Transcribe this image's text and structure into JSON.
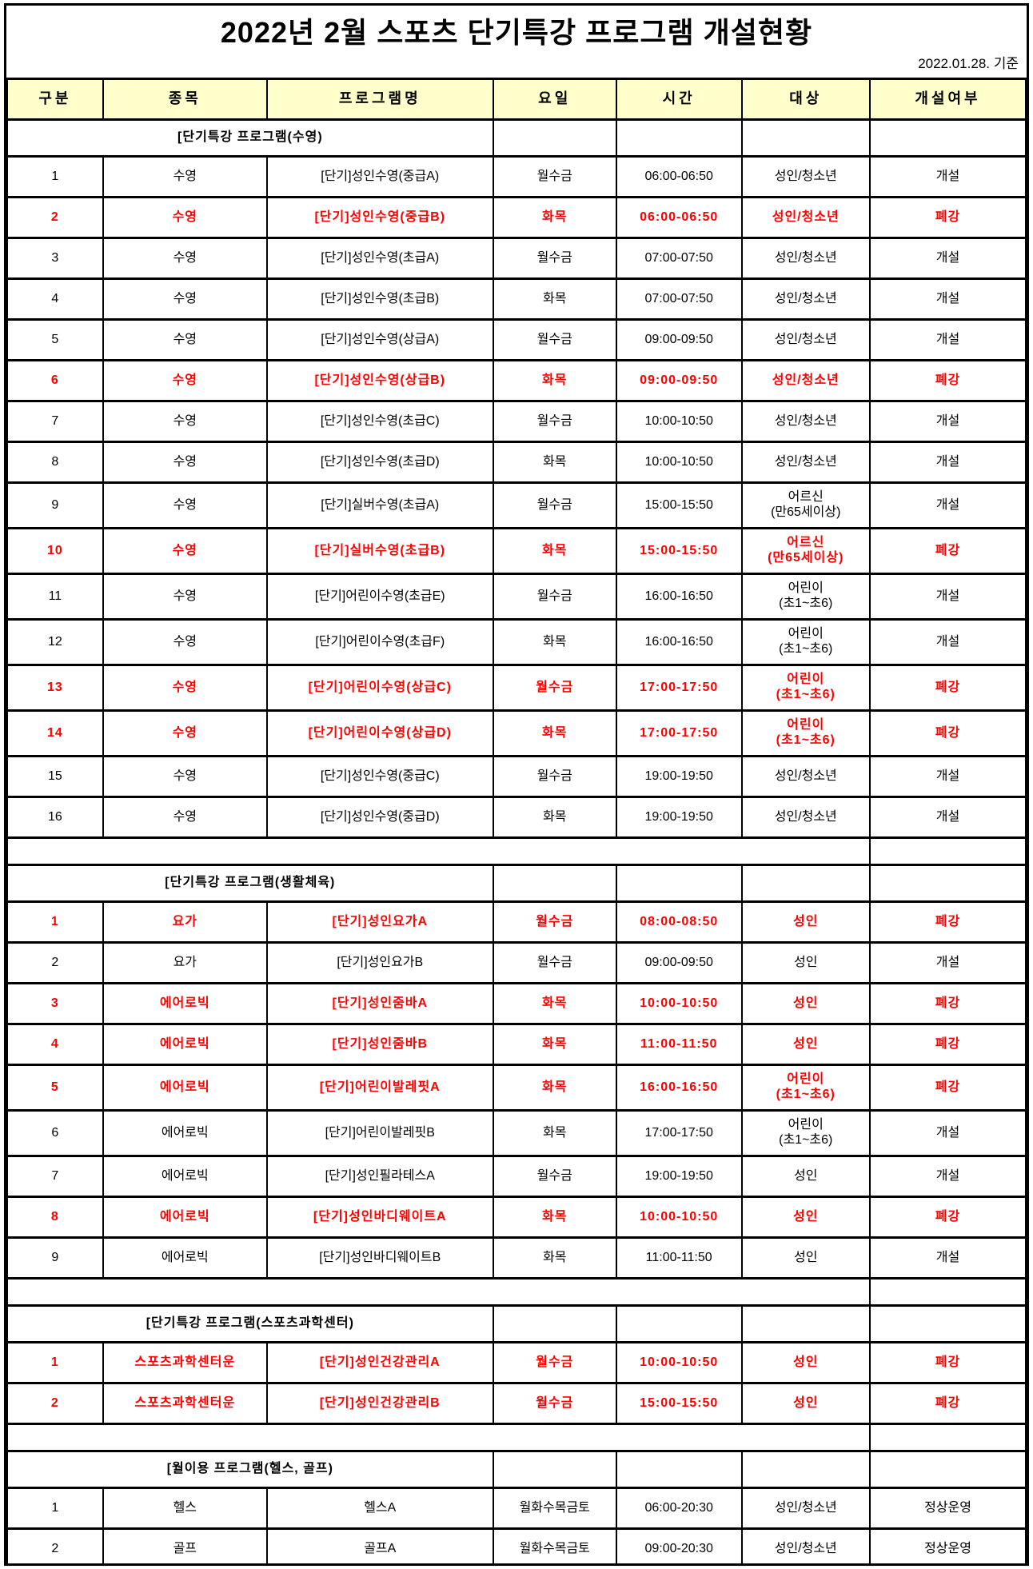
{
  "title": "2022년 2월 스포츠 단기특강 프로그램 개설현황",
  "date_note": "2022.01.28. 기준",
  "colors": {
    "header_bg": "#FFFFCC",
    "closed_text": "#FF0000",
    "normal_text": "#000000",
    "border": "#000000"
  },
  "columns": [
    "구분",
    "종목",
    "프로그램명",
    "요일",
    "시간",
    "대상",
    "개설여부"
  ],
  "sections": [
    {
      "header": "[단기특강  프로그램(수영)",
      "rows": [
        {
          "no": "1",
          "sport": "수영",
          "program": "[단기]성인수영(중급A)",
          "days": "월수금",
          "time": "06:00-06:50",
          "target": "성인/청소년",
          "status": "개설",
          "closed": false
        },
        {
          "no": "2",
          "sport": "수영",
          "program": "[단기]성인수영(중급B)",
          "days": "화목",
          "time": "06:00-06:50",
          "target": "성인/청소년",
          "status": "폐강",
          "closed": true
        },
        {
          "no": "3",
          "sport": "수영",
          "program": "[단기]성인수영(초급A)",
          "days": "월수금",
          "time": "07:00-07:50",
          "target": "성인/청소년",
          "status": "개설",
          "closed": false
        },
        {
          "no": "4",
          "sport": "수영",
          "program": "[단기]성인수영(초급B)",
          "days": "화목",
          "time": "07:00-07:50",
          "target": "성인/청소년",
          "status": "개설",
          "closed": false
        },
        {
          "no": "5",
          "sport": "수영",
          "program": "[단기]성인수영(상급A)",
          "days": "월수금",
          "time": "09:00-09:50",
          "target": "성인/청소년",
          "status": "개설",
          "closed": false
        },
        {
          "no": "6",
          "sport": "수영",
          "program": "[단기]성인수영(상급B)",
          "days": "화목",
          "time": "09:00-09:50",
          "target": "성인/청소년",
          "status": "폐강",
          "closed": true
        },
        {
          "no": "7",
          "sport": "수영",
          "program": "[단기]성인수영(초급C)",
          "days": "월수금",
          "time": "10:00-10:50",
          "target": "성인/청소년",
          "status": "개설",
          "closed": false
        },
        {
          "no": "8",
          "sport": "수영",
          "program": "[단기]성인수영(초급D)",
          "days": "화목",
          "time": "10:00-10:50",
          "target": "성인/청소년",
          "status": "개설",
          "closed": false
        },
        {
          "no": "9",
          "sport": "수영",
          "program": "[단기]실버수영(초급A)",
          "days": "월수금",
          "time": "15:00-15:50",
          "target": "어르신\n(만65세이상)",
          "status": "개설",
          "closed": false
        },
        {
          "no": "10",
          "sport": "수영",
          "program": "[단기]실버수영(초급B)",
          "days": "화목",
          "time": "15:00-15:50",
          "target": "어르신\n(만65세이상)",
          "status": "폐강",
          "closed": true
        },
        {
          "no": "11",
          "sport": "수영",
          "program": "[단기]어린이수영(초급E)",
          "days": "월수금",
          "time": "16:00-16:50",
          "target": "어린이\n(초1~초6)",
          "status": "개설",
          "closed": false
        },
        {
          "no": "12",
          "sport": "수영",
          "program": "[단기]어린이수영(초급F)",
          "days": "화목",
          "time": "16:00-16:50",
          "target": "어린이\n(초1~초6)",
          "status": "개설",
          "closed": false
        },
        {
          "no": "13",
          "sport": "수영",
          "program": "[단기]어린이수영(상급C)",
          "days": "월수금",
          "time": "17:00-17:50",
          "target": "어린이\n(초1~초6)",
          "status": "폐강",
          "closed": true
        },
        {
          "no": "14",
          "sport": "수영",
          "program": "[단기]어린이수영(상급D)",
          "days": "화목",
          "time": "17:00-17:50",
          "target": "어린이\n(초1~초6)",
          "status": "폐강",
          "closed": true
        },
        {
          "no": "15",
          "sport": "수영",
          "program": "[단기]성인수영(중급C)",
          "days": "월수금",
          "time": "19:00-19:50",
          "target": "성인/청소년",
          "status": "개설",
          "closed": false
        },
        {
          "no": "16",
          "sport": "수영",
          "program": "[단기]성인수영(중급D)",
          "days": "화목",
          "time": "19:00-19:50",
          "target": "성인/청소년",
          "status": "개설",
          "closed": false
        }
      ]
    },
    {
      "header": "[단기특강  프로그램(생활체육)",
      "rows": [
        {
          "no": "1",
          "sport": "요가",
          "program": "[단기]성인요가A",
          "days": "월수금",
          "time": "08:00-08:50",
          "target": "성인",
          "status": "폐강",
          "closed": true
        },
        {
          "no": "2",
          "sport": "요가",
          "program": "[단기]성인요가B",
          "days": "월수금",
          "time": "09:00-09:50",
          "target": "성인",
          "status": "개설",
          "closed": false
        },
        {
          "no": "3",
          "sport": "에어로빅",
          "program": "[단기]성인줌바A",
          "days": "화목",
          "time": "10:00-10:50",
          "target": "성인",
          "status": "폐강",
          "closed": true
        },
        {
          "no": "4",
          "sport": "에어로빅",
          "program": "[단기]성인줌바B",
          "days": "화목",
          "time": "11:00-11:50",
          "target": "성인",
          "status": "폐강",
          "closed": true
        },
        {
          "no": "5",
          "sport": "에어로빅",
          "program": "[단기]어린이발레핏A",
          "days": "화목",
          "time": "16:00-16:50",
          "target": "어린이\n(초1~초6)",
          "status": "폐강",
          "closed": true
        },
        {
          "no": "6",
          "sport": "에어로빅",
          "program": "[단기]어린이발레핏B",
          "days": "화목",
          "time": "17:00-17:50",
          "target": "어린이\n(초1~초6)",
          "status": "개설",
          "closed": false
        },
        {
          "no": "7",
          "sport": "에어로빅",
          "program": "[단기]성인필라테스A",
          "days": "월수금",
          "time": "19:00-19:50",
          "target": "성인",
          "status": "개설",
          "closed": false
        },
        {
          "no": "8",
          "sport": "에어로빅",
          "program": "[단기]성인바디웨이트A",
          "days": "화목",
          "time": "10:00-10:50",
          "target": "성인",
          "status": "폐강",
          "closed": true
        },
        {
          "no": "9",
          "sport": "에어로빅",
          "program": "[단기]성인바디웨이트B",
          "days": "화목",
          "time": "11:00-11:50",
          "target": "성인",
          "status": "개설",
          "closed": false
        }
      ]
    },
    {
      "header": "[단기특강  프로그램(스포츠과학센터)",
      "rows": [
        {
          "no": "1",
          "sport": "스포츠과학센터운",
          "program": "[단기]성인건강관리A",
          "days": "월수금",
          "time": "10:00-10:50",
          "target": "성인",
          "status": "폐강",
          "closed": true
        },
        {
          "no": "2",
          "sport": "스포츠과학센터운",
          "program": "[단기]성인건강관리B",
          "days": "월수금",
          "time": "15:00-15:50",
          "target": "성인",
          "status": "폐강",
          "closed": true
        }
      ]
    },
    {
      "header": "[월이용  프로그램(헬스, 골프)",
      "rows": [
        {
          "no": "1",
          "sport": "헬스",
          "program": "헬스A",
          "days": "월화수목금토",
          "time": "06:00-20:30",
          "target": "성인/청소년",
          "status": "정상운영",
          "closed": false
        },
        {
          "no": "2",
          "sport": "골프",
          "program": "골프A",
          "days": "월화수목금토",
          "time": "09:00-20:30",
          "target": "성인/청소년",
          "status": "정상운영",
          "closed": false
        }
      ]
    }
  ]
}
